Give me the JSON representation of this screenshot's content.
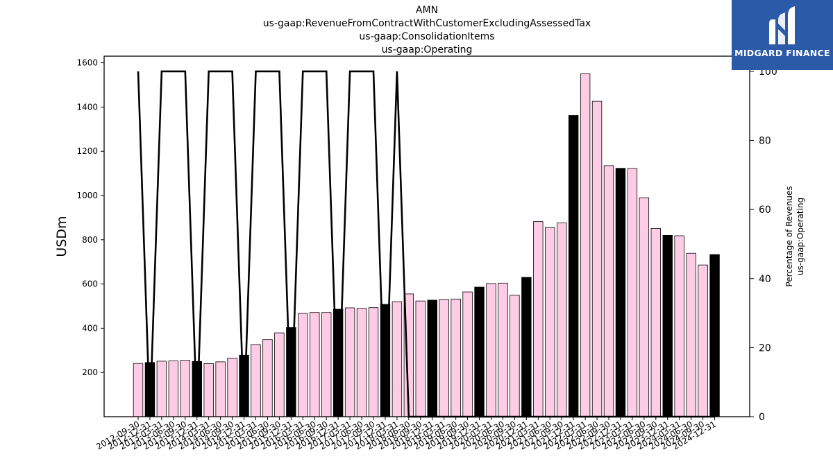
{
  "chart_data": {
    "type": "bar",
    "title_lines": [
      "AMN",
      "us-gaap:RevenueFromContractWithCustomerExcludingAssessedTax",
      "us-gaap:ConsolidationItems",
      "us-gaap:Operating"
    ],
    "ylabel": "USDm",
    "y2label_lines": [
      "Percentage of Revenues",
      "us-gaap:Operating"
    ],
    "ylim": [
      0,
      1630
    ],
    "y2lim": [
      0,
      104.4
    ],
    "yticks": [
      200,
      400,
      600,
      800,
      1000,
      1200,
      1400,
      1600
    ],
    "y2ticks": [
      0,
      20,
      40,
      60,
      80,
      100
    ],
    "categories": [
      "2012-09-30",
      "2012-12-31",
      "2013-03-31",
      "2013-06-30",
      "2013-09-30",
      "2013-12-31",
      "2014-03-31",
      "2014-06-30",
      "2014-09-30",
      "2014-12-31",
      "2015-03-31",
      "2015-06-30",
      "2015-09-30",
      "2015-12-31",
      "2016-03-31",
      "2016-06-30",
      "2016-09-30",
      "2016-12-31",
      "2017-03-31",
      "2017-06-30",
      "2017-09-30",
      "2017-12-31",
      "2018-03-31",
      "2018-06-30",
      "2018-09-30",
      "2018-12-31",
      "2019-03-31",
      "2019-06-30",
      "2019-09-30",
      "2019-12-31",
      "2020-03-31",
      "2020-06-30",
      "2020-09-30",
      "2020-12-31",
      "2021-03-31",
      "2021-06-30",
      "2021-09-30",
      "2021-12-31",
      "2022-03-31",
      "2022-06-30",
      "2022-09-30",
      "2022-12-31",
      "2023-03-31",
      "2023-06-30",
      "2023-09-30",
      "2023-12-31",
      "2024-03-31",
      "2024-06-30",
      "2024-09-30",
      "2024-12-31"
    ],
    "values": [
      241,
      245,
      251,
      252,
      255,
      250,
      240,
      248,
      265,
      278,
      326,
      349,
      379,
      403,
      467,
      471,
      471,
      486,
      492,
      490,
      493,
      508,
      520,
      555,
      523,
      527,
      530,
      532,
      564,
      586,
      602,
      604,
      549,
      630,
      882,
      855,
      876,
      1362,
      1550,
      1426,
      1135,
      1123,
      1122,
      990,
      851,
      820,
      818,
      739,
      686,
      733
    ],
    "highlight": [
      false,
      true,
      false,
      false,
      false,
      true,
      false,
      false,
      false,
      true,
      false,
      false,
      false,
      true,
      false,
      false,
      false,
      true,
      false,
      false,
      false,
      true,
      false,
      false,
      false,
      true,
      false,
      false,
      false,
      true,
      false,
      false,
      false,
      true,
      false,
      false,
      false,
      true,
      false,
      false,
      false,
      true,
      false,
      false,
      false,
      true,
      false,
      false,
      false,
      true
    ],
    "line_values": [
      100,
      0,
      100,
      100,
      100,
      0,
      100,
      100,
      100,
      0,
      100,
      100,
      100,
      0,
      100,
      100,
      100,
      0,
      100,
      100,
      100,
      0,
      100,
      0,
      0,
      0,
      0,
      0,
      0,
      0,
      0,
      0,
      0,
      0,
      0,
      0,
      0,
      0,
      0,
      0,
      0,
      0,
      0,
      0,
      0,
      0,
      0,
      0,
      0,
      0
    ],
    "colors": {
      "bar": "#ffcce6",
      "bar_highlight": "#000000",
      "line": "#000000"
    }
  },
  "logo": {
    "text": "MIDGARD FINANCE",
    "background": "#2b5aa8"
  }
}
